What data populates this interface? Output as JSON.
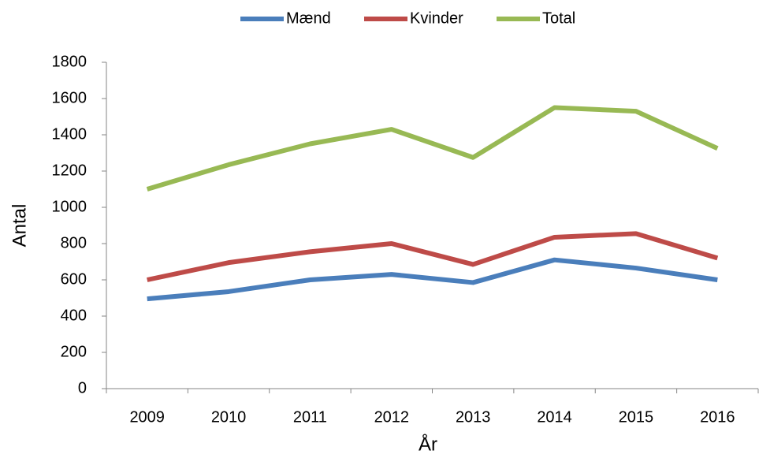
{
  "chart_data": {
    "type": "line",
    "categories": [
      "2009",
      "2010",
      "2011",
      "2012",
      "2013",
      "2014",
      "2015",
      "2016"
    ],
    "series": [
      {
        "name": "Mænd",
        "color": "#4a7ebb",
        "values": [
          495,
          535,
          600,
          630,
          585,
          710,
          665,
          600
        ]
      },
      {
        "name": "Kvinder",
        "color": "#be4b48",
        "values": [
          600,
          695,
          755,
          800,
          685,
          835,
          855,
          720
        ]
      },
      {
        "name": "Total",
        "color": "#98b954",
        "values": [
          1100,
          1235,
          1350,
          1430,
          1275,
          1550,
          1530,
          1325
        ]
      }
    ],
    "ylim": [
      0,
      1800
    ],
    "yticks": [
      0,
      200,
      400,
      600,
      800,
      1000,
      1200,
      1400,
      1600,
      1800
    ],
    "xlabel": "År",
    "ylabel": "Antal",
    "legend_position": "top",
    "grid": false
  }
}
